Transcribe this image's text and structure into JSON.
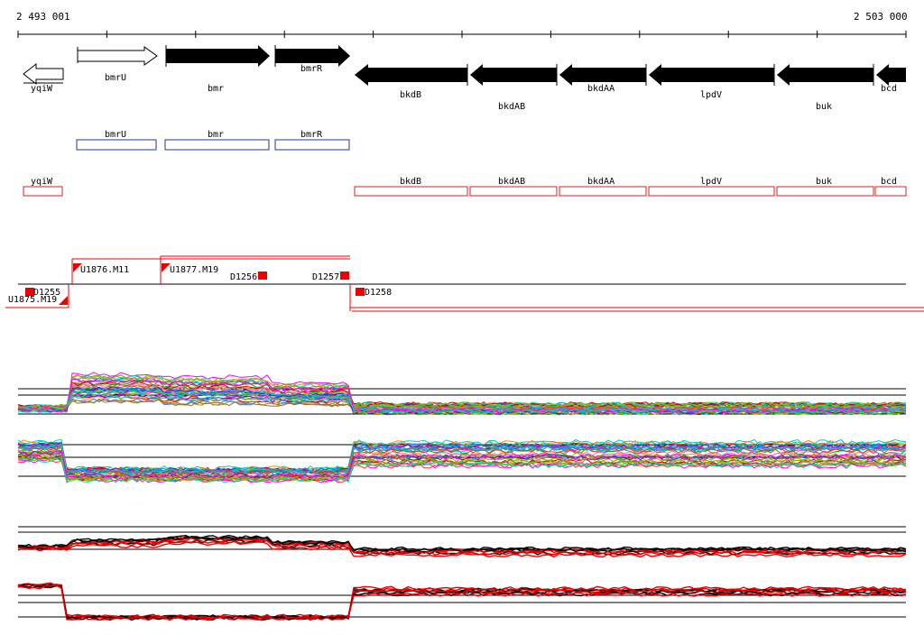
{
  "ruler": {
    "start_label": "2 493 001",
    "end_label": "2 503 000"
  },
  "genes_arrows": [
    {
      "name": "yqiW",
      "strand": "-",
      "style": "outline"
    },
    {
      "name": "bmrU",
      "strand": "+",
      "style": "outline"
    },
    {
      "name": "bmr",
      "strand": "+",
      "style": "filled"
    },
    {
      "name": "bmrR",
      "strand": "+",
      "style": "filled"
    },
    {
      "name": "bkdB",
      "strand": "-",
      "style": "filled"
    },
    {
      "name": "bkdAB",
      "strand": "-",
      "style": "filled"
    },
    {
      "name": "bkdAA",
      "strand": "-",
      "style": "filled"
    },
    {
      "name": "lpdV",
      "strand": "-",
      "style": "filled"
    },
    {
      "name": "buk",
      "strand": "-",
      "style": "filled"
    },
    {
      "name": "bcd",
      "strand": "-",
      "style": "filled"
    }
  ],
  "forward_boxes": [
    "bmrU",
    "bmr",
    "bmrR"
  ],
  "reverse_boxes": [
    "yqiW",
    "bkdB",
    "bkdAB",
    "bkdAA",
    "lpdV",
    "buk",
    "bcd"
  ],
  "features": {
    "promoters": [
      "U1876.M11",
      "U1877.M19",
      "U1875.M19"
    ],
    "terminators": [
      "D1255",
      "D1256",
      "D1257",
      "D1258"
    ]
  },
  "colors": {
    "forward_gene_box": "#2233aa",
    "reverse_gene_box": "#dd2222",
    "feature_red": "#ee0000",
    "arrow_fill": "#000000"
  }
}
